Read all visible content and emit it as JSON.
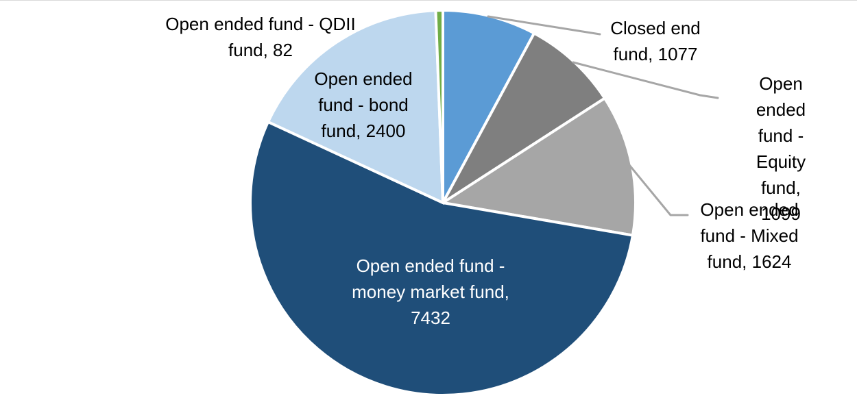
{
  "chart_data": {
    "type": "pie",
    "title": "",
    "legend": "none",
    "total": 13714,
    "start_angle_deg": 0,
    "direction": "clockwise",
    "separator_color": "#FFFFFF",
    "leader_line_color": "#A6A6A6",
    "outside_label_color": "#000000",
    "inside_label_color": "#FFFFFF",
    "slices": [
      {
        "id": "closed-end-fund",
        "name": "Closed end fund",
        "value": 1077,
        "color": "#5B9BD5",
        "callout": "Closed end\nfund, 1077"
      },
      {
        "id": "open-equity-fund",
        "name": "Open ended fund - Equity fund",
        "value": 1099,
        "color": "#7F7F7F",
        "callout": "Open ended\nfund - Equity\nfund, 1099"
      },
      {
        "id": "open-mixed-fund",
        "name": "Open ended fund - Mixed fund",
        "value": 1624,
        "color": "#A6A6A6",
        "callout": "Open ended\nfund - Mixed\nfund, 1624"
      },
      {
        "id": "open-money-market-fund",
        "name": "Open ended fund - money market fund",
        "value": 7432,
        "color": "#1F4E79",
        "callout": "Open ended fund -\nmoney market fund,\n7432"
      },
      {
        "id": "open-bond-fund",
        "name": "Open ended fund - bond fund",
        "value": 2400,
        "color": "#BDD7EE",
        "callout": "Open ended\nfund - bond\nfund, 2400"
      },
      {
        "id": "open-qdii-fund",
        "name": "Open ended fund - QDII fund",
        "value": 82,
        "color": "#70AD47",
        "callout": "Open ended fund - QDII\nfund, 82"
      }
    ]
  }
}
